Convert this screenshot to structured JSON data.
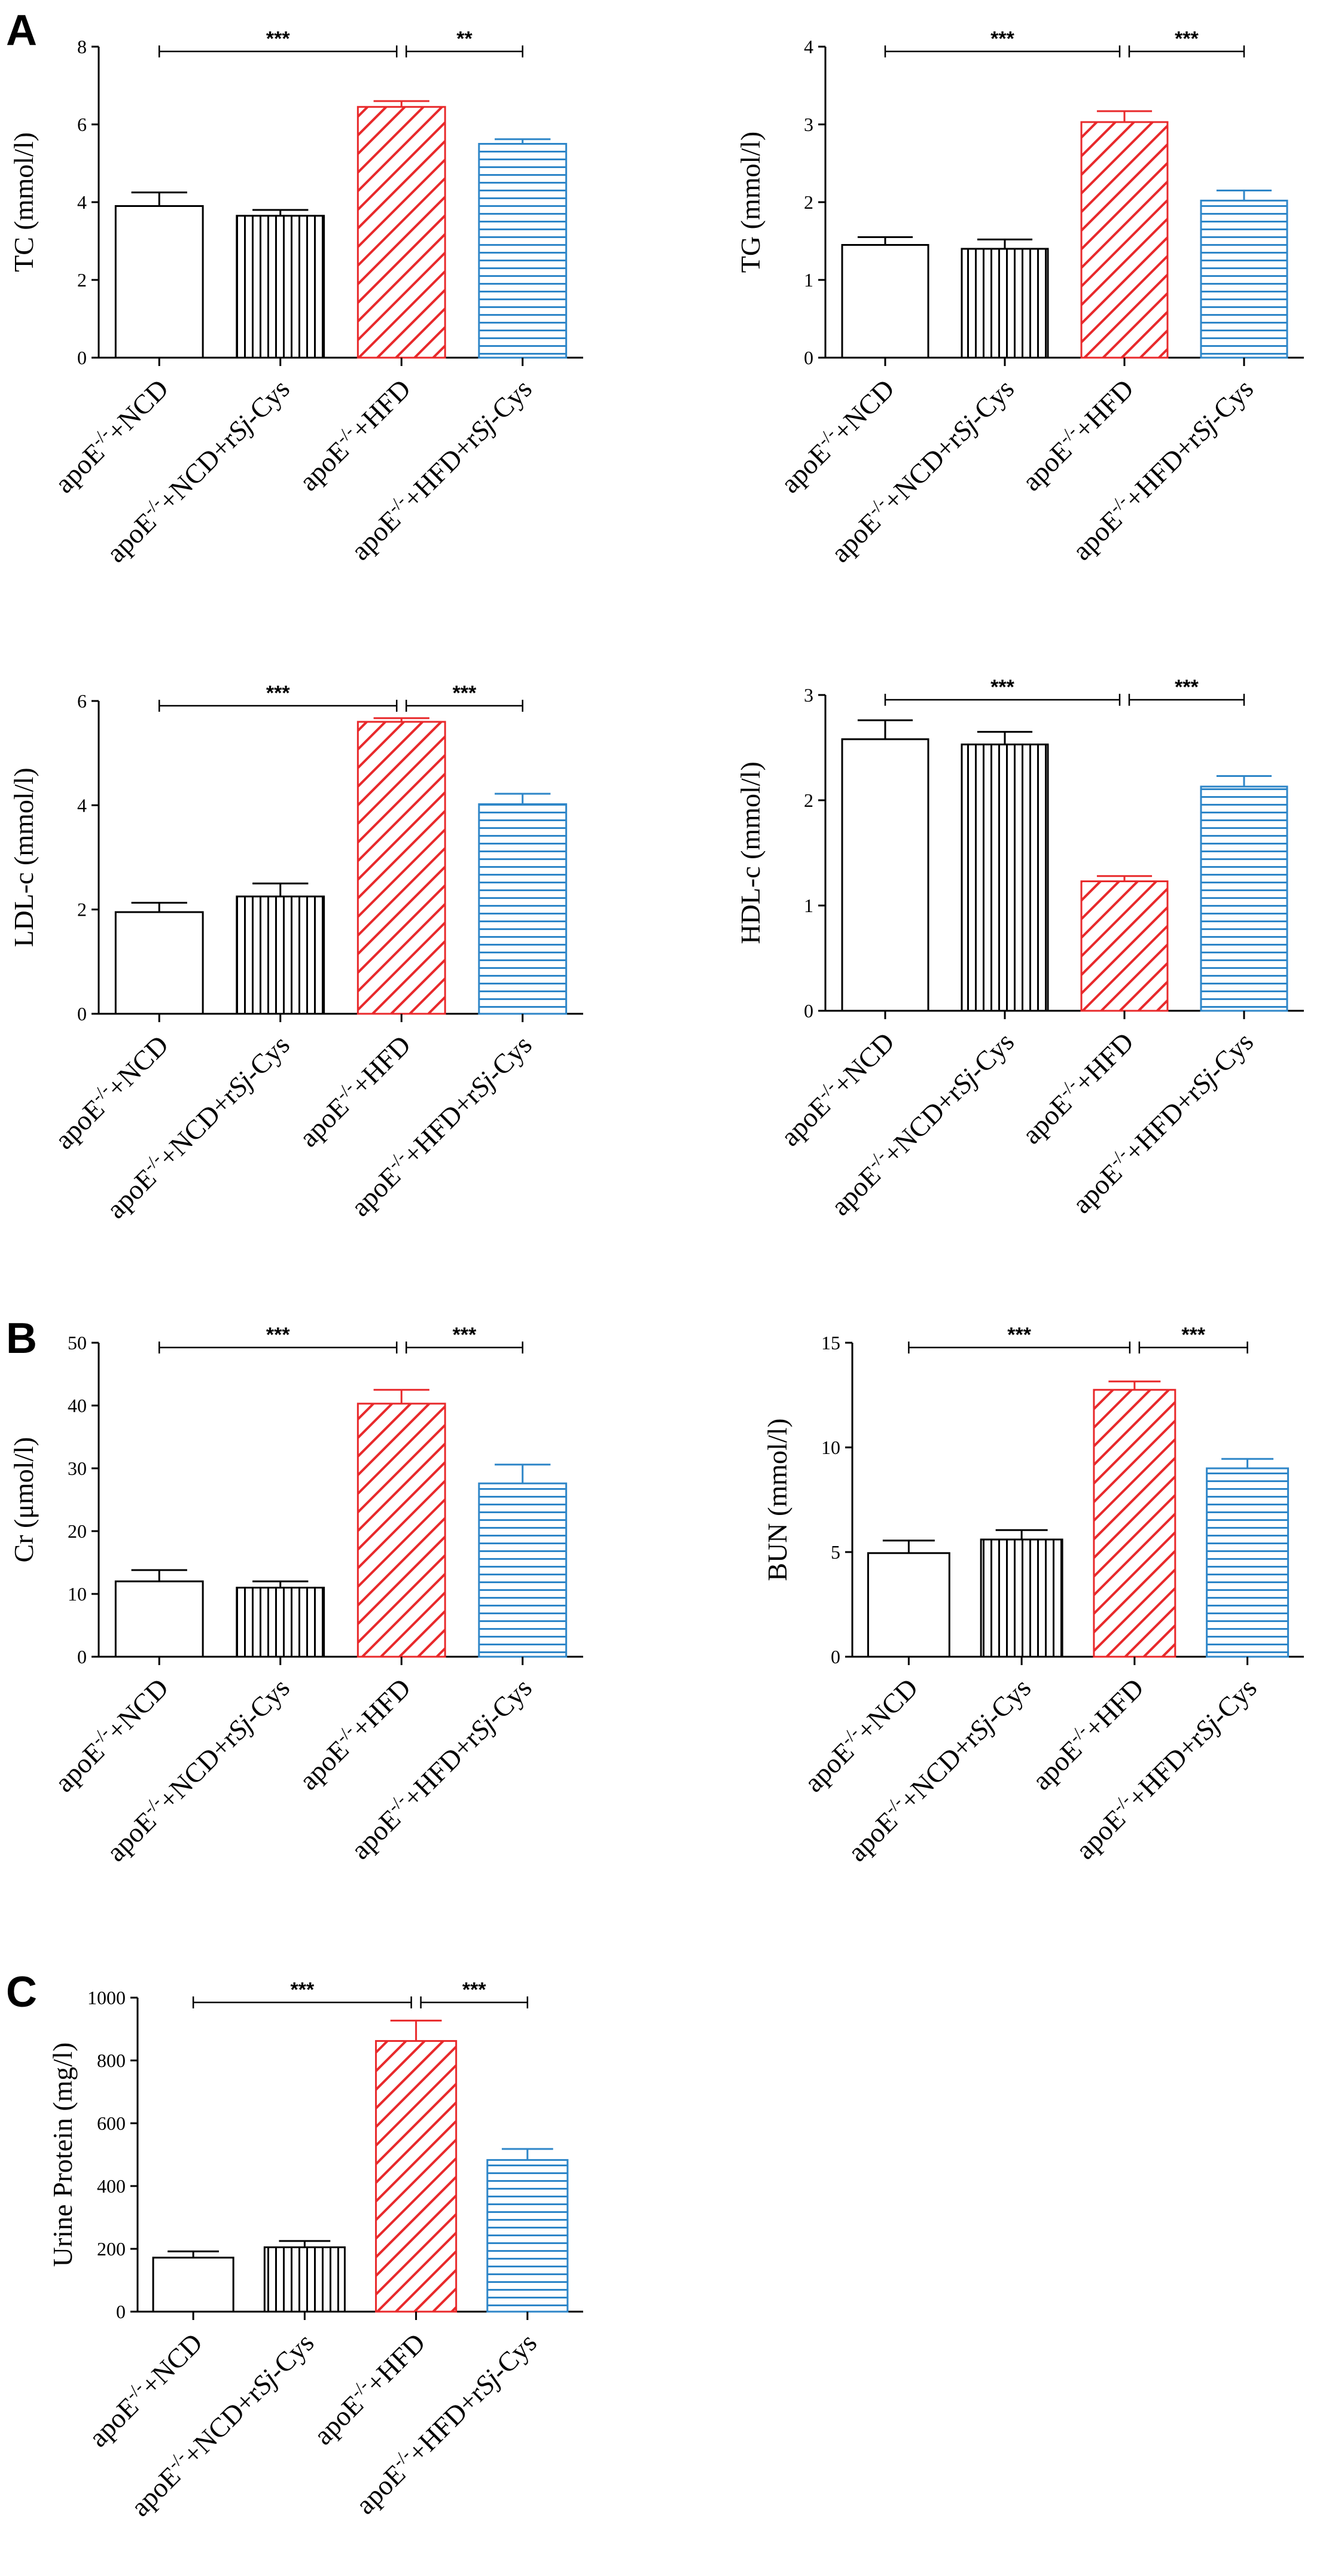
{
  "colors": {
    "white": "#ffffff",
    "black": "#000000",
    "red": "#e8292b",
    "blue": "#2e86c8"
  },
  "chart_data": [
    {
      "id": "tc",
      "type": "bar",
      "panel_label": "A",
      "ylabel": "TC (mmol/l)",
      "ylim": [
        0,
        8
      ],
      "yticks": [
        "0",
        "2",
        "4",
        "6",
        "8"
      ],
      "categories": [
        {
          "pre": "apoE",
          "sup": "-/-",
          "mid": "+NCD",
          "it": "",
          "post": ""
        },
        {
          "pre": "apoE",
          "sup": "-/-",
          "mid": "+NCD+r",
          "it": "Sj",
          "post": "-Cys"
        },
        {
          "pre": "apoE",
          "sup": "-/-",
          "mid": "+HFD",
          "it": "",
          "post": ""
        },
        {
          "pre": "apoE",
          "sup": "-/-",
          "mid": "+HFD+r",
          "it": "Sj",
          "post": "-Cys"
        }
      ],
      "values": [
        3.9,
        3.65,
        6.45,
        5.5
      ],
      "errors": [
        0.35,
        0.15,
        0.15,
        0.12
      ],
      "patterns": [
        "none",
        "vertical",
        "diagonal",
        "horizontal"
      ],
      "significance": [
        {
          "from": 0,
          "to": 2,
          "label": "***"
        },
        {
          "from": 2,
          "to": 3,
          "label": "**"
        }
      ]
    },
    {
      "id": "tg",
      "type": "bar",
      "panel_label": "",
      "ylabel": "TG (mmol/l)",
      "ylim": [
        0,
        4
      ],
      "yticks": [
        "0",
        "1",
        "2",
        "3",
        "4"
      ],
      "categories": [
        {
          "pre": "apoE",
          "sup": "-/-",
          "mid": "+NCD",
          "it": "",
          "post": ""
        },
        {
          "pre": "apoE",
          "sup": "-/-",
          "mid": "+NCD+r",
          "it": "Sj",
          "post": "-Cys"
        },
        {
          "pre": "apoE",
          "sup": "-/-",
          "mid": "+HFD",
          "it": "",
          "post": ""
        },
        {
          "pre": "apoE",
          "sup": "-/-",
          "mid": "+HFD+r",
          "it": "Sj",
          "post": "-Cys"
        }
      ],
      "values": [
        1.45,
        1.4,
        3.03,
        2.02
      ],
      "errors": [
        0.1,
        0.12,
        0.14,
        0.13
      ],
      "patterns": [
        "none",
        "vertical",
        "diagonal",
        "horizontal"
      ],
      "significance": [
        {
          "from": 0,
          "to": 2,
          "label": "***"
        },
        {
          "from": 2,
          "to": 3,
          "label": "***"
        }
      ]
    },
    {
      "id": "ldl",
      "type": "bar",
      "panel_label": "",
      "ylabel": "LDL-c (mmol/l)",
      "ylim": [
        0,
        6
      ],
      "yticks": [
        "0",
        "2",
        "4",
        "6"
      ],
      "categories": [
        {
          "pre": "apoE",
          "sup": "-/-",
          "mid": "+NCD",
          "it": "",
          "post": ""
        },
        {
          "pre": "apoE",
          "sup": "-/-",
          "mid": "+NCD+r",
          "it": "Sj",
          "post": "-Cys"
        },
        {
          "pre": "apoE",
          "sup": "-/-",
          "mid": "+HFD",
          "it": "",
          "post": ""
        },
        {
          "pre": "apoE",
          "sup": "-/-",
          "mid": "+HFD+r",
          "it": "Sj",
          "post": "-Cys"
        }
      ],
      "values": [
        1.95,
        2.25,
        5.6,
        4.02
      ],
      "errors": [
        0.18,
        0.25,
        0.07,
        0.2
      ],
      "patterns": [
        "none",
        "vertical",
        "diagonal",
        "horizontal"
      ],
      "significance": [
        {
          "from": 0,
          "to": 2,
          "label": "***"
        },
        {
          "from": 2,
          "to": 3,
          "label": "***"
        }
      ]
    },
    {
      "id": "hdl",
      "type": "bar",
      "panel_label": "",
      "ylabel": "HDL-c (mmol/l)",
      "ylim": [
        0,
        3
      ],
      "yticks": [
        "0",
        "1",
        "2",
        "3"
      ],
      "categories": [
        {
          "pre": "apoE",
          "sup": "-/-",
          "mid": "+NCD",
          "it": "",
          "post": ""
        },
        {
          "pre": "apoE",
          "sup": "-/-",
          "mid": "+NCD+r",
          "it": "Sj",
          "post": "-Cys"
        },
        {
          "pre": "apoE",
          "sup": "-/-",
          "mid": "+HFD",
          "it": "",
          "post": ""
        },
        {
          "pre": "apoE",
          "sup": "-/-",
          "mid": "+HFD+r",
          "it": "Sj",
          "post": "-Cys"
        }
      ],
      "values": [
        2.58,
        2.53,
        1.23,
        2.13
      ],
      "errors": [
        0.18,
        0.12,
        0.05,
        0.1
      ],
      "patterns": [
        "none",
        "vertical",
        "diagonal",
        "horizontal"
      ],
      "significance": [
        {
          "from": 0,
          "to": 2,
          "label": "***"
        },
        {
          "from": 2,
          "to": 3,
          "label": "***"
        }
      ]
    },
    {
      "id": "cr",
      "type": "bar",
      "panel_label": "B",
      "ylabel": "Cr (μmol/l)",
      "ylim": [
        0,
        50
      ],
      "yticks": [
        "0",
        "10",
        "20",
        "30",
        "40",
        "50"
      ],
      "categories": [
        {
          "pre": "apoE",
          "sup": "-/-",
          "mid": "+NCD",
          "it": "",
          "post": ""
        },
        {
          "pre": "apoE",
          "sup": "-/-",
          "mid": "+NCD+r",
          "it": "Sj",
          "post": "-Cys"
        },
        {
          "pre": "apoE",
          "sup": "-/-",
          "mid": "+HFD",
          "it": "",
          "post": ""
        },
        {
          "pre": "apoE",
          "sup": "-/-",
          "mid": "+HFD+r",
          "it": "Sj",
          "post": "-Cys"
        }
      ],
      "values": [
        12.0,
        11.0,
        40.3,
        27.6
      ],
      "errors": [
        1.8,
        1.0,
        2.2,
        3.0
      ],
      "patterns": [
        "none",
        "vertical",
        "diagonal",
        "horizontal"
      ],
      "significance": [
        {
          "from": 0,
          "to": 2,
          "label": "***"
        },
        {
          "from": 2,
          "to": 3,
          "label": "***"
        }
      ]
    },
    {
      "id": "bun",
      "type": "bar",
      "panel_label": "",
      "ylabel": "BUN (mmol/l)",
      "ylim": [
        0,
        15
      ],
      "yticks": [
        "0",
        "5",
        "10",
        "15"
      ],
      "categories": [
        {
          "pre": "apoE",
          "sup": "-/-",
          "mid": "+NCD",
          "it": "",
          "post": ""
        },
        {
          "pre": "apoE",
          "sup": "-/-",
          "mid": "+NCD+r",
          "it": "Sj",
          "post": "-Cys"
        },
        {
          "pre": "apoE",
          "sup": "-/-",
          "mid": "+HFD",
          "it": "",
          "post": ""
        },
        {
          "pre": "apoE",
          "sup": "-/-",
          "mid": "+HFD+r",
          "it": "Sj",
          "post": "-Cys"
        }
      ],
      "values": [
        4.95,
        5.6,
        12.75,
        9.0
      ],
      "errors": [
        0.6,
        0.45,
        0.4,
        0.45
      ],
      "patterns": [
        "none",
        "vertical",
        "diagonal",
        "horizontal"
      ],
      "significance": [
        {
          "from": 0,
          "to": 2,
          "label": "***"
        },
        {
          "from": 2,
          "to": 3,
          "label": "***"
        }
      ]
    },
    {
      "id": "up",
      "type": "bar",
      "panel_label": "C",
      "ylabel": "Urine Protein (mg/l)",
      "ylim": [
        0,
        1000
      ],
      "yticks": [
        "0",
        "200",
        "400",
        "600",
        "800",
        "1000"
      ],
      "categories": [
        {
          "pre": "apoE",
          "sup": "-/-",
          "mid": "+NCD",
          "it": "",
          "post": ""
        },
        {
          "pre": "apoE",
          "sup": "-/-",
          "mid": "+NCD+r",
          "it": "Sj",
          "post": "-Cys"
        },
        {
          "pre": "apoE",
          "sup": "-/-",
          "mid": "+HFD",
          "it": "",
          "post": ""
        },
        {
          "pre": "apoE",
          "sup": "-/-",
          "mid": "+HFD+r",
          "it": "Sj",
          "post": "-Cys"
        }
      ],
      "values": [
        172,
        205,
        862,
        483
      ],
      "errors": [
        20,
        20,
        65,
        35
      ],
      "patterns": [
        "none",
        "vertical",
        "diagonal",
        "horizontal"
      ],
      "significance": [
        {
          "from": 0,
          "to": 2,
          "label": "***"
        },
        {
          "from": 2,
          "to": 3,
          "label": "***"
        }
      ]
    }
  ]
}
